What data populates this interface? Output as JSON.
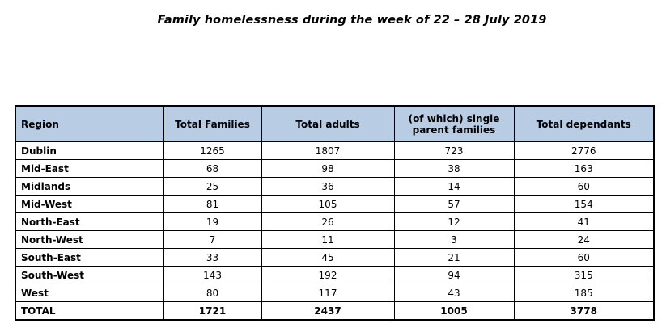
{
  "title": "Family homelessness during the week of 22 – 28 July 2019",
  "table": {
    "headers": [
      "Region",
      "Total Families",
      "Total adults",
      "(of which) single parent families",
      "Total dependants"
    ],
    "rows": [
      [
        "Dublin",
        "1265",
        "1807",
        "723",
        "2776"
      ],
      [
        "Mid-East",
        "68",
        "98",
        "38",
        "163"
      ],
      [
        "Midlands",
        "25",
        "36",
        "14",
        "60"
      ],
      [
        "Mid-West",
        "81",
        "105",
        "57",
        "154"
      ],
      [
        "North-East",
        "19",
        "26",
        "12",
        "41"
      ],
      [
        "North-West",
        "7",
        "11",
        "3",
        "24"
      ],
      [
        "South-East",
        "33",
        "45",
        "21",
        "60"
      ],
      [
        "South-West",
        "143",
        "192",
        "94",
        "315"
      ],
      [
        "West",
        "80",
        "117",
        "43",
        "185"
      ]
    ],
    "total": [
      "TOTAL",
      "1721",
      "2437",
      "1005",
      "3778"
    ]
  }
}
